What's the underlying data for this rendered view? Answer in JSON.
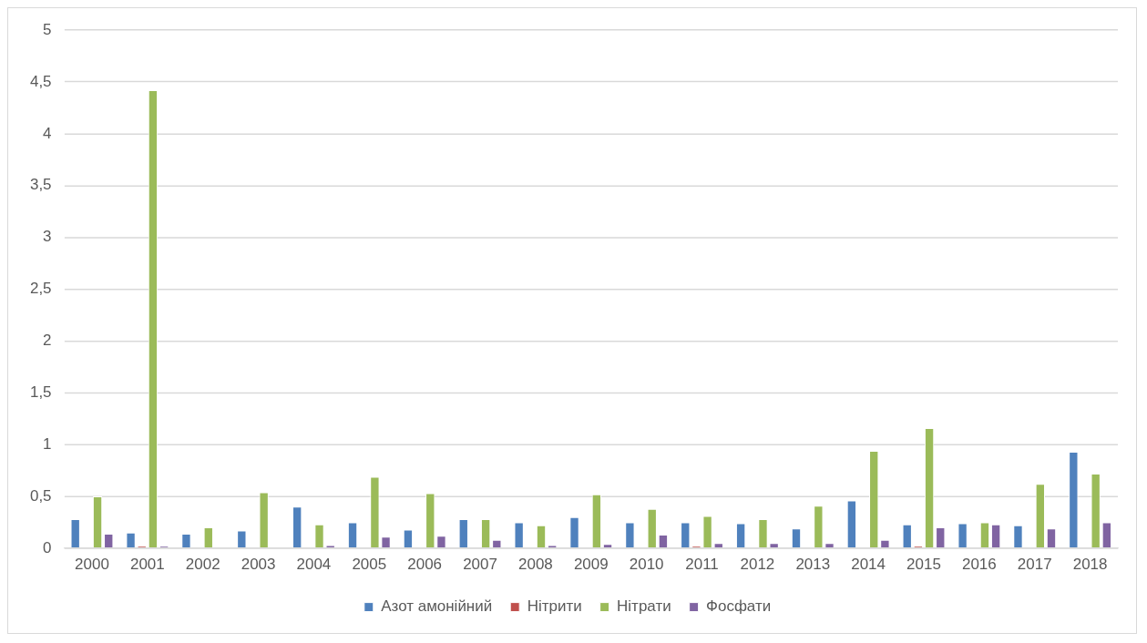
{
  "chart_data": {
    "type": "bar",
    "categories": [
      "2000",
      "2001",
      "2002",
      "2003",
      "2004",
      "2005",
      "2006",
      "2007",
      "2008",
      "2009",
      "2010",
      "2011",
      "2012",
      "2013",
      "2014",
      "2015",
      "2016",
      "2017",
      "2018"
    ],
    "series": [
      {
        "name": "Азот амонійний",
        "color": "#4f81bd",
        "values": [
          0.28,
          0.15,
          0.14,
          0.17,
          0.4,
          0.25,
          0.18,
          0.28,
          0.25,
          0.3,
          0.25,
          0.25,
          0.24,
          0.19,
          0.46,
          0.23,
          0.24,
          0.22,
          0.93
        ]
      },
      {
        "name": "Нітрити",
        "color": "#c0504d",
        "values": [
          0,
          0.02,
          0,
          0,
          0,
          0,
          0,
          0,
          0,
          0,
          0,
          0.02,
          0,
          0,
          0,
          0.02,
          0,
          0,
          0
        ]
      },
      {
        "name": "Нітрати",
        "color": "#9bbb59",
        "values": [
          0.5,
          4.42,
          0.2,
          0.54,
          0.23,
          0.69,
          0.53,
          0.28,
          0.22,
          0.52,
          0.38,
          0.31,
          0.28,
          0.41,
          0.94,
          1.16,
          0.25,
          0.62,
          0.72
        ]
      },
      {
        "name": "Фосфати",
        "color": "#8064a2",
        "values": [
          0.14,
          0.02,
          0,
          0,
          0.03,
          0.11,
          0.12,
          0.08,
          0.03,
          0.04,
          0.13,
          0.05,
          0.05,
          0.05,
          0.08,
          0.2,
          0.23,
          0.19,
          0.25
        ]
      }
    ],
    "ylim": [
      0,
      5
    ],
    "yticks": [
      0,
      {
        "value": 0.5,
        "label": "0,5"
      },
      1,
      {
        "value": 1.5,
        "label": "1,5"
      },
      2,
      {
        "value": 2.5,
        "label": "2,5"
      },
      3,
      {
        "value": 3.5,
        "label": "3,5"
      },
      4,
      {
        "value": 4.5,
        "label": "4,5"
      },
      5
    ],
    "grid": "y",
    "legend": "bottom"
  }
}
